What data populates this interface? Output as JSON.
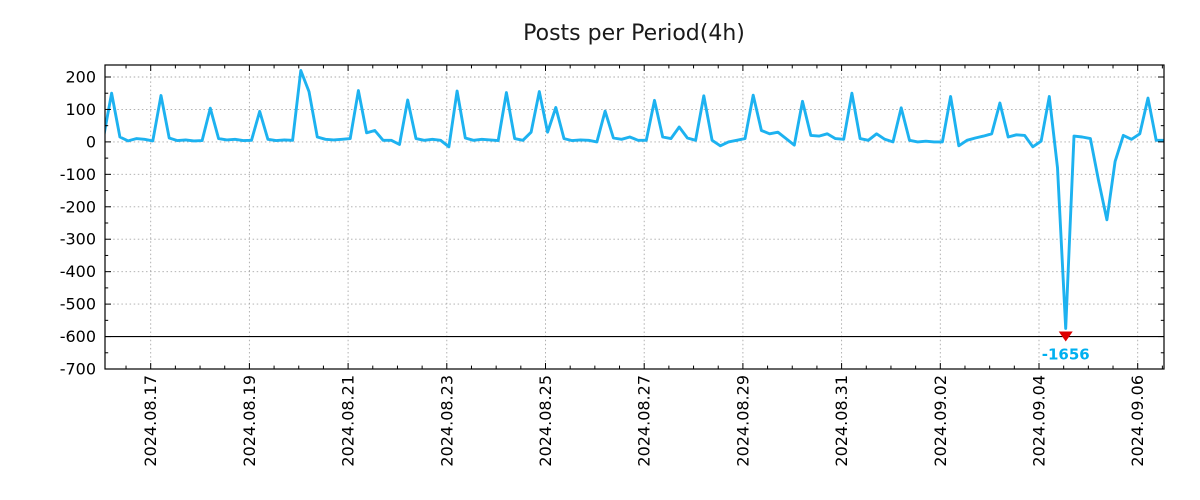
{
  "title": "Posts per Period(4h)",
  "chart_data": {
    "type": "line",
    "title": "Posts per Period(4h)",
    "xlabel": "",
    "ylabel": "",
    "x_start_date": "2024.08.16",
    "x_start_hour": 1,
    "interval_hours": 4,
    "series": [
      {
        "name": "posts",
        "values": [
          12,
          150,
          15,
          3,
          10,
          8,
          3,
          143,
          12,
          4,
          6,
          3,
          4,
          104,
          10,
          6,
          8,
          4,
          5,
          94,
          8,
          4,
          6,
          5,
          220,
          155,
          15,
          8,
          6,
          8,
          10,
          158,
          28,
          35,
          5,
          5,
          -8,
          129,
          10,
          5,
          8,
          5,
          -15,
          157,
          12,
          5,
          8,
          6,
          4,
          152,
          10,
          5,
          30,
          155,
          30,
          106,
          10,
          4,
          6,
          5,
          0,
          95,
          12,
          8,
          15,
          5,
          5,
          128,
          15,
          10,
          46,
          12,
          5,
          142,
          5,
          -12,
          0,
          5,
          10,
          144,
          35,
          25,
          30,
          10,
          -10,
          125,
          20,
          18,
          25,
          10,
          8,
          150,
          10,
          5,
          25,
          8,
          0,
          105,
          5,
          0,
          2,
          0,
          0,
          140,
          -12,
          5,
          12,
          18,
          25,
          120,
          15,
          22,
          20,
          -15,
          2,
          140,
          -80,
          -1656,
          18,
          15,
          10,
          -120,
          -240,
          -60,
          20,
          8,
          25,
          135,
          5,
          5
        ]
      }
    ],
    "ylim": [
      -700,
      237
    ],
    "yticks": [
      200,
      100,
      0,
      -100,
      -200,
      -300,
      -400,
      -500,
      -600,
      -700
    ],
    "y_minor_interval": 50,
    "xticks": [
      {
        "day_offset": 1,
        "label": "2024.08.17"
      },
      {
        "day_offset": 3,
        "label": "2024.08.19"
      },
      {
        "day_offset": 5,
        "label": "2024.08.21"
      },
      {
        "day_offset": 7,
        "label": "2024.08.23"
      },
      {
        "day_offset": 9,
        "label": "2024.08.25"
      },
      {
        "day_offset": 11,
        "label": "2024.08.27"
      },
      {
        "day_offset": 13,
        "label": "2024.08.29"
      },
      {
        "day_offset": 15,
        "label": "2024.08.31"
      },
      {
        "day_offset": 17,
        "label": "2024.09.02"
      },
      {
        "day_offset": 19,
        "label": "2024.09.04"
      },
      {
        "day_offset": 21,
        "label": "2024.09.06"
      }
    ],
    "x_minor_interval_days": 0.5,
    "grid": true,
    "legend": "none",
    "solid_hline_y": -600,
    "render_clamp_min": -575,
    "min_annotation": {
      "value": -1656,
      "label": "-1656"
    },
    "colors": {
      "line": "#1db2f0",
      "min_marker": "#dd0000",
      "min_label": "#00b0f0",
      "grid": "#a8a8a8",
      "axis": "#000000",
      "title": "#1a1a1a",
      "background": "#ffffff"
    }
  }
}
